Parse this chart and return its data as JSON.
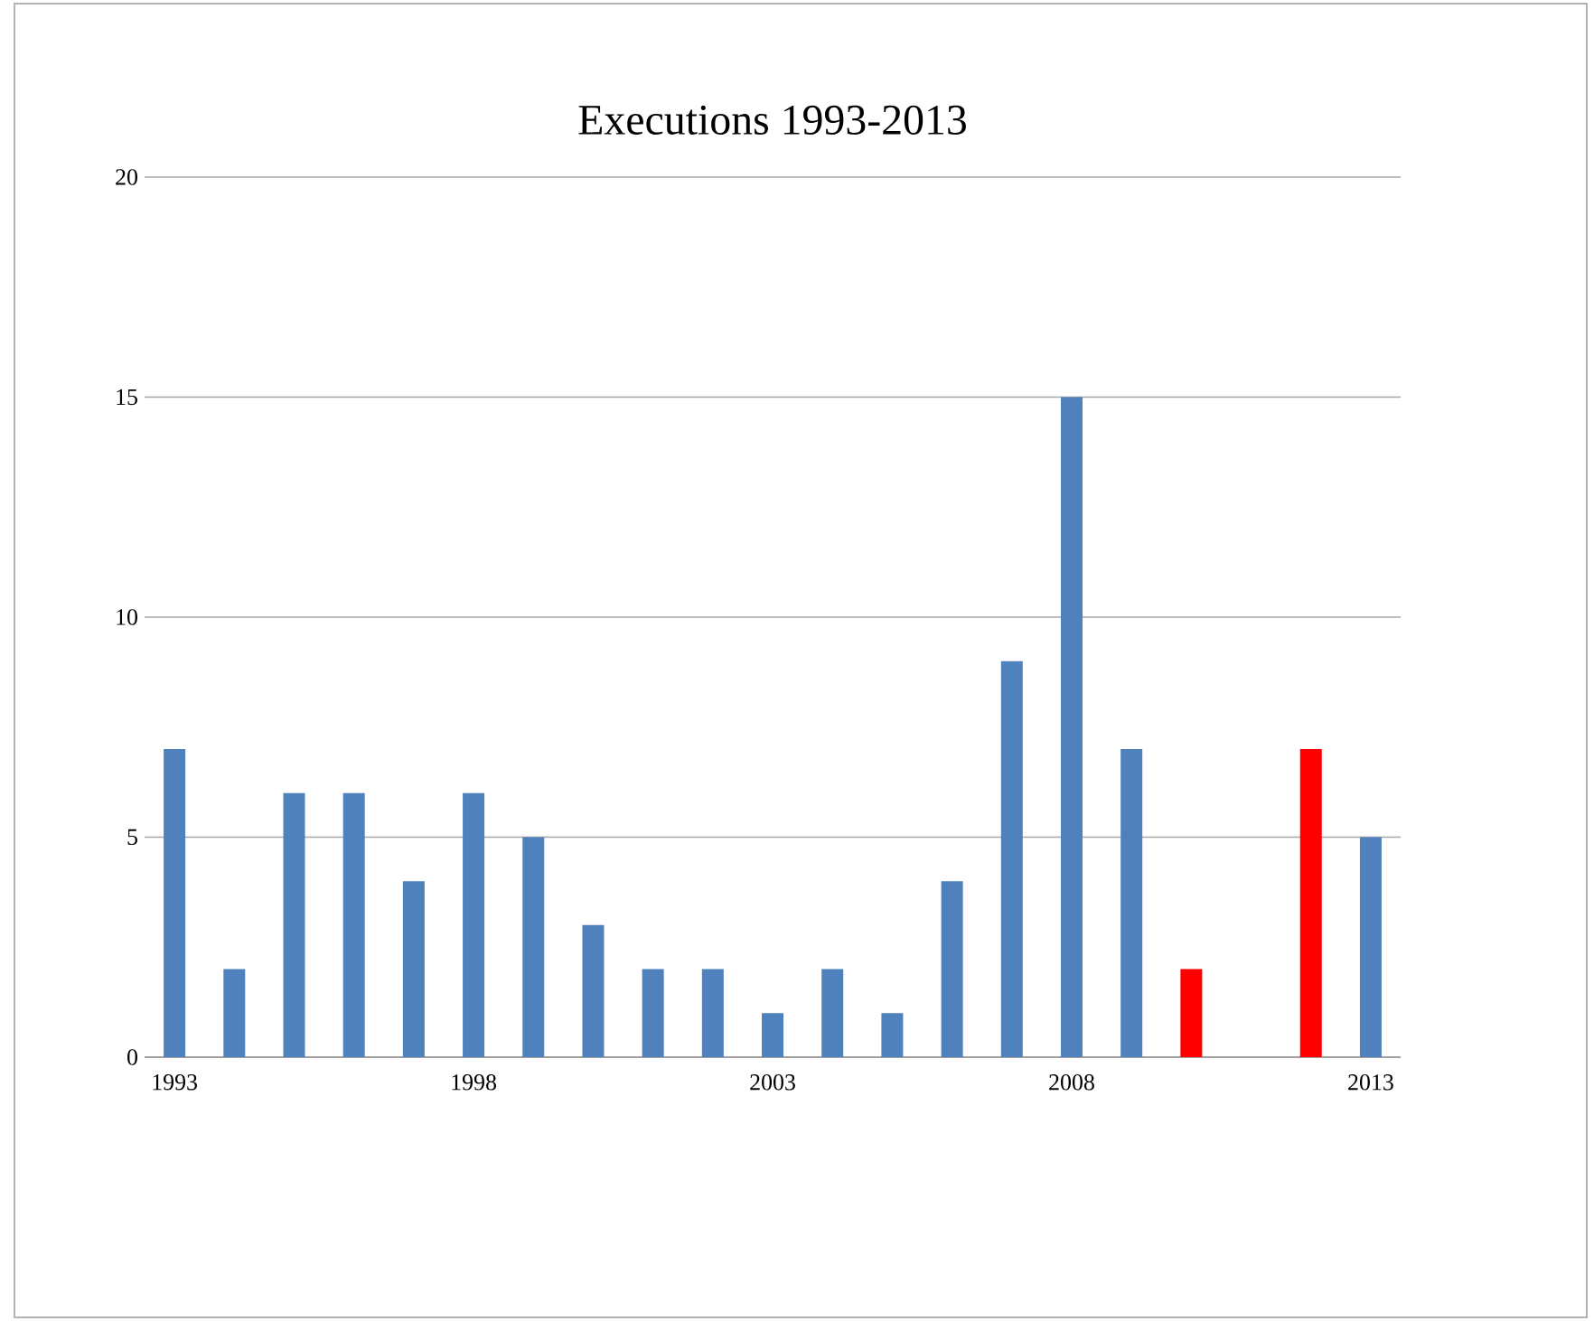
{
  "chart_data": {
    "type": "bar",
    "title": "Executions 1993-2013",
    "categories": [
      "1993",
      null,
      null,
      null,
      null,
      "1998",
      null,
      null,
      null,
      null,
      "2003",
      null,
      null,
      null,
      null,
      "2008",
      null,
      null,
      null,
      null,
      "2013"
    ],
    "values": [
      7,
      2,
      6,
      6,
      4,
      6,
      5,
      3,
      2,
      2,
      1,
      2,
      1,
      4,
      9,
      15,
      7,
      2,
      0,
      7,
      5
    ],
    "colors": [
      "#4f81bd",
      "#4f81bd",
      "#4f81bd",
      "#4f81bd",
      "#4f81bd",
      "#4f81bd",
      "#4f81bd",
      "#4f81bd",
      "#4f81bd",
      "#4f81bd",
      "#4f81bd",
      "#4f81bd",
      "#4f81bd",
      "#4f81bd",
      "#4f81bd",
      "#4f81bd",
      "#4f81bd",
      "#ff0000",
      "#4f81bd",
      "#ff0000",
      "#4f81bd"
    ],
    "ylim": [
      0,
      20
    ],
    "yticks": [
      0,
      5,
      10,
      15,
      20
    ],
    "grid": "y"
  }
}
